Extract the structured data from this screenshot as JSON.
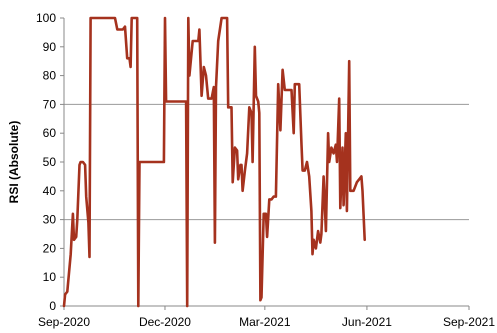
{
  "chart_data": {
    "type": "line",
    "title": "",
    "xlabel": "",
    "ylabel": "RSI (Absolute)",
    "ylim": [
      0,
      100
    ],
    "yticks": [
      0,
      10,
      20,
      30,
      40,
      50,
      60,
      70,
      80,
      90,
      100
    ],
    "xlim": [
      "2020-09-01",
      "2021-09-01"
    ],
    "xticks": [
      {
        "date": "2020-09-01",
        "label": "Sep-2020"
      },
      {
        "date": "2020-12-01",
        "label": "Dec-2020"
      },
      {
        "date": "2021-03-01",
        "label": "Mar-2021"
      },
      {
        "date": "2021-06-01",
        "label": "Jun-2021"
      },
      {
        "date": "2021-09-01",
        "label": "Sep-2021"
      }
    ],
    "reference_lines": [
      70,
      30
    ],
    "grid": false,
    "colors": {
      "series": "#a5321e",
      "reference": "#999999",
      "axis": "#888888"
    },
    "series": [
      {
        "name": "",
        "points": [
          [
            "2020-09-01",
            0
          ],
          [
            "2020-09-02",
            4
          ],
          [
            "2020-09-04",
            5
          ],
          [
            "2020-09-07",
            18
          ],
          [
            "2020-09-09",
            32
          ],
          [
            "2020-09-10",
            23
          ],
          [
            "2020-09-12",
            24
          ],
          [
            "2020-09-13",
            30
          ],
          [
            "2020-09-15",
            49
          ],
          [
            "2020-09-16",
            50
          ],
          [
            "2020-09-18",
            50
          ],
          [
            "2020-09-20",
            49
          ],
          [
            "2020-09-21",
            38
          ],
          [
            "2020-09-23",
            29
          ],
          [
            "2020-09-24",
            17
          ],
          [
            "2020-09-25",
            100
          ],
          [
            "2020-10-17",
            100
          ],
          [
            "2020-10-19",
            96
          ],
          [
            "2020-10-24",
            96
          ],
          [
            "2020-10-26",
            97
          ],
          [
            "2020-10-28",
            86
          ],
          [
            "2020-10-30",
            86
          ],
          [
            "2020-10-31",
            83
          ],
          [
            "2020-11-01",
            100
          ],
          [
            "2020-11-06",
            100
          ],
          [
            "2020-11-07",
            0
          ],
          [
            "2020-11-08",
            50
          ],
          [
            "2020-11-30",
            50
          ],
          [
            "2020-12-01",
            100
          ],
          [
            "2020-12-02",
            71
          ],
          [
            "2020-12-20",
            71
          ],
          [
            "2020-12-21",
            0
          ],
          [
            "2020-12-22",
            100
          ],
          [
            "2020-12-23",
            80
          ],
          [
            "2020-12-26",
            92
          ],
          [
            "2020-12-31",
            92
          ],
          [
            "2021-01-01",
            96
          ],
          [
            "2021-01-03",
            73
          ],
          [
            "2021-01-05",
            83
          ],
          [
            "2021-01-07",
            80
          ],
          [
            "2021-01-09",
            72
          ],
          [
            "2021-01-12",
            72
          ],
          [
            "2021-01-14",
            76
          ],
          [
            "2021-01-15",
            22
          ],
          [
            "2021-01-16",
            76
          ],
          [
            "2021-01-18",
            92
          ],
          [
            "2021-01-21",
            100
          ],
          [
            "2021-01-26",
            100
          ],
          [
            "2021-01-27",
            69
          ],
          [
            "2021-01-30",
            69
          ],
          [
            "2021-01-31",
            43
          ],
          [
            "2021-02-02",
            55
          ],
          [
            "2021-02-04",
            54
          ],
          [
            "2021-02-05",
            44
          ],
          [
            "2021-02-07",
            49
          ],
          [
            "2021-02-08",
            49
          ],
          [
            "2021-02-09",
            40
          ],
          [
            "2021-02-11",
            47
          ],
          [
            "2021-02-13",
            53
          ],
          [
            "2021-02-15",
            69
          ],
          [
            "2021-02-17",
            67
          ],
          [
            "2021-02-18",
            50
          ],
          [
            "2021-02-20",
            90
          ],
          [
            "2021-02-21",
            73
          ],
          [
            "2021-02-23",
            71
          ],
          [
            "2021-02-24",
            67
          ],
          [
            "2021-02-25",
            2
          ],
          [
            "2021-02-26",
            3
          ],
          [
            "2021-02-28",
            32
          ],
          [
            "2021-03-02",
            32
          ],
          [
            "2021-03-03",
            24
          ],
          [
            "2021-03-05",
            37
          ],
          [
            "2021-03-07",
            37
          ],
          [
            "2021-03-09",
            38
          ],
          [
            "2021-03-11",
            38
          ],
          [
            "2021-03-13",
            77
          ],
          [
            "2021-03-15",
            61
          ],
          [
            "2021-03-17",
            82
          ],
          [
            "2021-03-19",
            75
          ],
          [
            "2021-03-25",
            75
          ],
          [
            "2021-03-27",
            60
          ],
          [
            "2021-03-28",
            77
          ],
          [
            "2021-04-01",
            77
          ],
          [
            "2021-04-03",
            56
          ],
          [
            "2021-04-04",
            47
          ],
          [
            "2021-04-06",
            47
          ],
          [
            "2021-04-08",
            50
          ],
          [
            "2021-04-10",
            45
          ],
          [
            "2021-04-12",
            33
          ],
          [
            "2021-04-13",
            18
          ],
          [
            "2021-04-14",
            23
          ],
          [
            "2021-04-16",
            20
          ],
          [
            "2021-04-18",
            26
          ],
          [
            "2021-04-20",
            22
          ],
          [
            "2021-04-21",
            25
          ],
          [
            "2021-04-23",
            45
          ],
          [
            "2021-04-25",
            26
          ],
          [
            "2021-04-27",
            60
          ],
          [
            "2021-04-28",
            50
          ],
          [
            "2021-04-30",
            55
          ],
          [
            "2021-05-02",
            53
          ],
          [
            "2021-05-04",
            56
          ],
          [
            "2021-05-05",
            50
          ],
          [
            "2021-05-07",
            72
          ],
          [
            "2021-05-08",
            34
          ],
          [
            "2021-05-10",
            55
          ],
          [
            "2021-05-11",
            35
          ],
          [
            "2021-05-13",
            60
          ],
          [
            "2021-05-14",
            33
          ],
          [
            "2021-05-16",
            85
          ],
          [
            "2021-05-17",
            40
          ],
          [
            "2021-05-20",
            40
          ],
          [
            "2021-05-23",
            43
          ],
          [
            "2021-05-25",
            44
          ],
          [
            "2021-05-27",
            45
          ],
          [
            "2021-05-28",
            40
          ],
          [
            "2021-05-30",
            23
          ]
        ]
      }
    ]
  }
}
